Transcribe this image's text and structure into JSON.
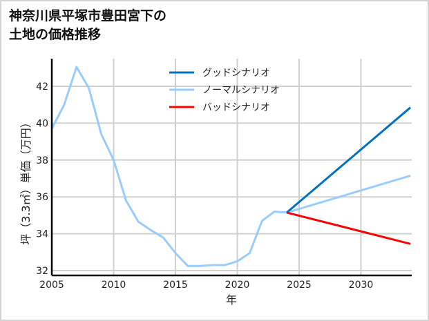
{
  "title_line1": "神奈川県平塚市豊田宮下の",
  "title_line2": "土地の価格推移",
  "chart_data": {
    "type": "line",
    "title": "神奈川県平塚市豊田宮下の土地の価格推移",
    "xlabel": "年",
    "ylabel": "坪（3.3㎡）単価（万円）",
    "xlim": [
      2005,
      2034
    ],
    "ylim": [
      31.8,
      43.3
    ],
    "xticks": [
      2005,
      2010,
      2015,
      2020,
      2025,
      2030
    ],
    "yticks": [
      32,
      34,
      36,
      38,
      40,
      42
    ],
    "grid": true,
    "legend_position": "upper center",
    "series": [
      {
        "name": "ノーマルシナリオ",
        "color": "#99ccff",
        "x": [
          2005,
          2006,
          2007,
          2008,
          2009,
          2010,
          2011,
          2012,
          2013,
          2014,
          2015,
          2016,
          2017,
          2018,
          2019,
          2020,
          2021,
          2022,
          2023,
          2024,
          2034
        ],
        "values": [
          39.7,
          41.0,
          43.05,
          41.9,
          39.4,
          38.0,
          35.8,
          34.65,
          34.2,
          33.8,
          32.95,
          32.25,
          32.25,
          32.3,
          32.3,
          32.5,
          32.95,
          34.7,
          35.2,
          35.15,
          37.15
        ]
      },
      {
        "name": "グッドシナリオ",
        "color": "#0070c0",
        "x": [
          2024,
          2034
        ],
        "values": [
          35.15,
          40.85
        ]
      },
      {
        "name": "バッドシナリオ",
        "color": "#ff0000",
        "x": [
          2024,
          2034
        ],
        "values": [
          35.15,
          33.45
        ]
      }
    ]
  },
  "legend": [
    {
      "label": "グッドシナリオ",
      "color": "#0070c0"
    },
    {
      "label": "ノーマルシナリオ",
      "color": "#99ccff"
    },
    {
      "label": "バッドシナリオ",
      "color": "#ff0000"
    }
  ]
}
